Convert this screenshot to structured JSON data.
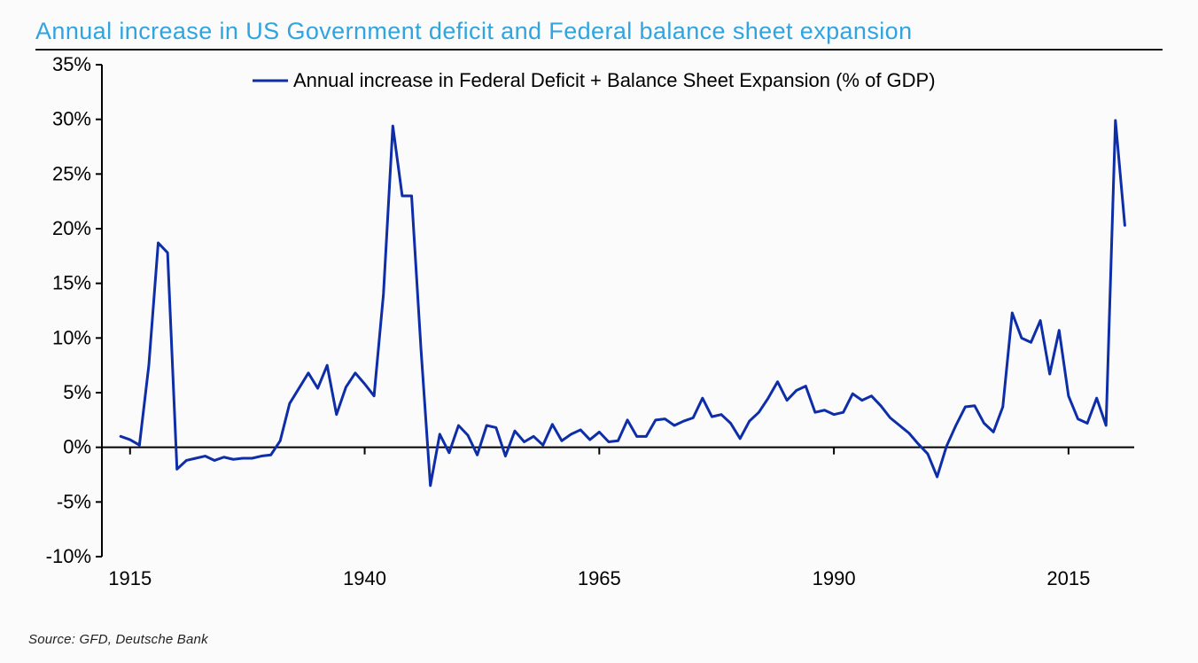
{
  "title": "Annual increase in US Government deficit and Federal balance sheet expansion",
  "source": "Source: GFD, Deutsche Bank",
  "chart": {
    "type": "line",
    "legend_label": "Annual increase in Federal Deficit + Balance Sheet Expansion (% of GDP)",
    "line_color": "#0d2ea8",
    "line_width": 3.0,
    "axis_color": "#000000",
    "tick_color": "#000000",
    "background_color": "#fcfbfb",
    "title_color": "#2fa4df",
    "title_fontsize": 27,
    "label_fontsize": 22,
    "x_axis": {
      "min": 1912,
      "max": 2022,
      "ticks": [
        1915,
        1940,
        1965,
        1990,
        2015
      ],
      "tick_labels": [
        "1915",
        "1940",
        "1965",
        "1990",
        "2015"
      ]
    },
    "y_axis": {
      "min": -10,
      "max": 35,
      "ticks": [
        -10,
        -5,
        0,
        5,
        10,
        15,
        20,
        25,
        30,
        35
      ],
      "tick_labels": [
        "-10%",
        "-5%",
        "0%",
        "5%",
        "10%",
        "15%",
        "20%",
        "25%",
        "30%",
        "35%"
      ]
    },
    "series": [
      {
        "name": "deficit_plus_bs_expansion",
        "points": [
          [
            1914,
            1.0
          ],
          [
            1915,
            0.7
          ],
          [
            1916,
            0.2
          ],
          [
            1917,
            7.5
          ],
          [
            1918,
            18.7
          ],
          [
            1919,
            17.8
          ],
          [
            1920,
            -2.0
          ],
          [
            1921,
            -1.2
          ],
          [
            1922,
            -1.0
          ],
          [
            1923,
            -0.8
          ],
          [
            1924,
            -1.2
          ],
          [
            1925,
            -0.9
          ],
          [
            1926,
            -1.1
          ],
          [
            1927,
            -1.0
          ],
          [
            1928,
            -1.0
          ],
          [
            1929,
            -0.8
          ],
          [
            1930,
            -0.7
          ],
          [
            1931,
            0.6
          ],
          [
            1932,
            4.0
          ],
          [
            1933,
            5.4
          ],
          [
            1934,
            6.8
          ],
          [
            1935,
            5.4
          ],
          [
            1936,
            7.5
          ],
          [
            1937,
            3.0
          ],
          [
            1938,
            5.5
          ],
          [
            1939,
            6.8
          ],
          [
            1940,
            5.8
          ],
          [
            1941,
            4.7
          ],
          [
            1942,
            14.0
          ],
          [
            1943,
            29.4
          ],
          [
            1944,
            23.0
          ],
          [
            1945,
            23.0
          ],
          [
            1946,
            9.0
          ],
          [
            1947,
            -3.5
          ],
          [
            1948,
            1.2
          ],
          [
            1949,
            -0.5
          ],
          [
            1950,
            2.0
          ],
          [
            1951,
            1.1
          ],
          [
            1952,
            -0.7
          ],
          [
            1953,
            2.0
          ],
          [
            1954,
            1.8
          ],
          [
            1955,
            -0.8
          ],
          [
            1956,
            1.5
          ],
          [
            1957,
            0.5
          ],
          [
            1958,
            1.0
          ],
          [
            1959,
            0.2
          ],
          [
            1960,
            2.1
          ],
          [
            1961,
            0.6
          ],
          [
            1962,
            1.2
          ],
          [
            1963,
            1.6
          ],
          [
            1964,
            0.7
          ],
          [
            1965,
            1.4
          ],
          [
            1966,
            0.5
          ],
          [
            1967,
            0.6
          ],
          [
            1968,
            2.5
          ],
          [
            1969,
            1.0
          ],
          [
            1970,
            1.0
          ],
          [
            1971,
            2.5
          ],
          [
            1972,
            2.6
          ],
          [
            1973,
            2.0
          ],
          [
            1974,
            2.4
          ],
          [
            1975,
            2.7
          ],
          [
            1976,
            4.5
          ],
          [
            1977,
            2.8
          ],
          [
            1978,
            3.0
          ],
          [
            1979,
            2.2
          ],
          [
            1980,
            0.8
          ],
          [
            1981,
            2.4
          ],
          [
            1982,
            3.2
          ],
          [
            1983,
            4.5
          ],
          [
            1984,
            6.0
          ],
          [
            1985,
            4.3
          ],
          [
            1986,
            5.2
          ],
          [
            1987,
            5.6
          ],
          [
            1988,
            3.2
          ],
          [
            1989,
            3.4
          ],
          [
            1990,
            3.0
          ],
          [
            1991,
            3.2
          ],
          [
            1992,
            4.9
          ],
          [
            1993,
            4.3
          ],
          [
            1994,
            4.7
          ],
          [
            1995,
            3.8
          ],
          [
            1996,
            2.7
          ],
          [
            1997,
            2.0
          ],
          [
            1998,
            1.3
          ],
          [
            1999,
            0.3
          ],
          [
            2000,
            -0.6
          ],
          [
            2001,
            -2.7
          ],
          [
            2002,
            0.1
          ],
          [
            2003,
            2.0
          ],
          [
            2004,
            3.7
          ],
          [
            2005,
            3.8
          ],
          [
            2006,
            2.2
          ],
          [
            2007,
            1.4
          ],
          [
            2008,
            3.7
          ],
          [
            2009,
            12.3
          ],
          [
            2010,
            10.0
          ],
          [
            2011,
            9.6
          ],
          [
            2012,
            11.6
          ],
          [
            2013,
            6.7
          ],
          [
            2014,
            10.7
          ],
          [
            2015,
            4.7
          ],
          [
            2016,
            2.6
          ],
          [
            2017,
            2.2
          ],
          [
            2018,
            4.5
          ],
          [
            2019,
            2.0
          ],
          [
            2020,
            29.9
          ],
          [
            2021,
            20.3
          ]
        ]
      }
    ]
  }
}
